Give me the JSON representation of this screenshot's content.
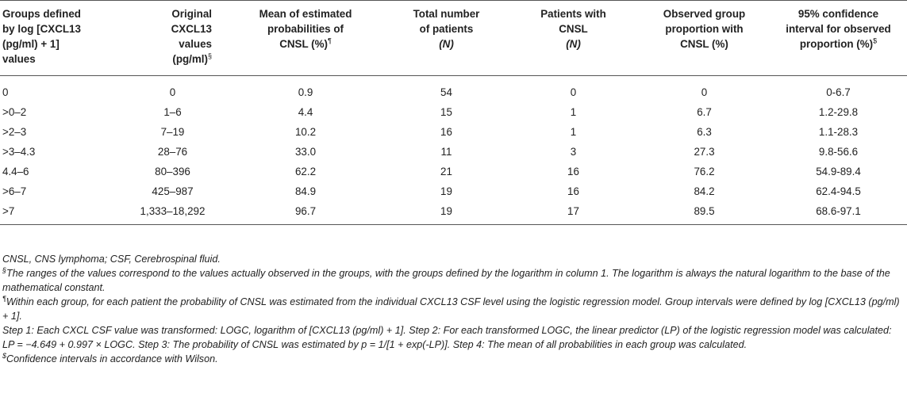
{
  "headers": {
    "groups": [
      "Groups defined",
      "by log [CXCL13",
      "(pg/ml) + 1]",
      "values"
    ],
    "original": [
      "Original",
      "CXCL13",
      "values",
      "(pg/ml)"
    ],
    "original_mark": "§",
    "mean": [
      "Mean of estimated",
      "probabilities of",
      "CNSL (%)"
    ],
    "mean_mark": "¶",
    "total": [
      "Total number",
      "of patients",
      "(N)"
    ],
    "cnsl": [
      "Patients with",
      "CNSL",
      "(N)"
    ],
    "observed": [
      "Observed group",
      "proportion with",
      "CNSL (%)"
    ],
    "ci": [
      "95% confidence",
      "interval for observed",
      "proportion (%)"
    ],
    "ci_mark": "$"
  },
  "rows": [
    {
      "group": "0",
      "original": "0",
      "mean": "0.9",
      "total": "54",
      "cnsl": "0",
      "observed": "0",
      "ci": "0-6.7"
    },
    {
      "group": ">0–2",
      "original": "1–6",
      "mean": "4.4",
      "total": "15",
      "cnsl": "1",
      "observed": "6.7",
      "ci": "1.2-29.8"
    },
    {
      "group": ">2–3",
      "original": "7–19",
      "mean": "10.2",
      "total": "16",
      "cnsl": "1",
      "observed": "6.3",
      "ci": "1.1-28.3"
    },
    {
      "group": ">3–4.3",
      "original": "28–76",
      "mean": "33.0",
      "total": "11",
      "cnsl": "3",
      "observed": "27.3",
      "ci": "9.8-56.6"
    },
    {
      "group": "4.4–6",
      "original": "80–396",
      "mean": "62.2",
      "total": "21",
      "cnsl": "16",
      "observed": "76.2",
      "ci": "54.9-89.4"
    },
    {
      "group": ">6–7",
      "original": "425–987",
      "mean": "84.9",
      "total": "19",
      "cnsl": "16",
      "observed": "84.2",
      "ci": "62.4-94.5"
    },
    {
      "group": ">7",
      "original": "1,333–18,292",
      "mean": "96.7",
      "total": "19",
      "cnsl": "17",
      "observed": "89.5",
      "ci": "68.6-97.1"
    }
  ],
  "notes": {
    "abbrev": "CNSL, CNS lymphoma; CSF, Cerebrospinal fluid.",
    "note1_mark": "§",
    "note1": "The ranges of the values correspond to the values actually observed in the groups, with the groups defined by the logarithm in column 1. The logarithm is always the natural logarithm to the base of the mathematical constant.",
    "note2_mark": "¶",
    "note2": "Within each group, for each patient the probability of CNSL was estimated from the individual CXCL13 CSF level using the logistic regression model. Group intervals were defined by log [CXCL13 (pg/ml) + 1].",
    "note3": "Step 1: Each CXCL CSF value was transformed: LOGC, logarithm of [CXCL13 (pg/ml) + 1]. Step 2: For each transformed LOGC, the linear predictor (LP) of the logistic regression model was calculated: LP = −4.649 + 0.997 × LOGC. Step 3: The probability of CNSL was estimated by p = 1/[1 + exp(-LP)]. Step 4: The mean of all probabilities in each group was calculated.",
    "note4_mark": "$",
    "note4": "Confidence intervals in accordance with Wilson."
  }
}
